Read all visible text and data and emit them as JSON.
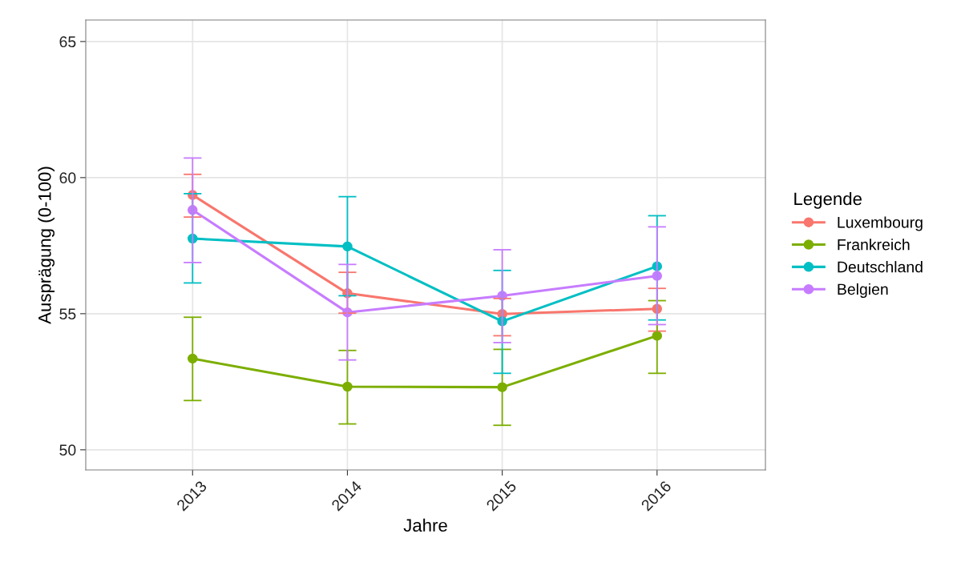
{
  "chart_data": {
    "type": "line",
    "xlabel": "Jahre",
    "ylabel": "Ausprägung (0-100)",
    "legend_title": "Legende",
    "x": [
      2013,
      2014,
      2015,
      2016
    ],
    "xlim": [
      2012.31,
      2016.7
    ],
    "xticks": [
      2013,
      2014,
      2015,
      2016
    ],
    "ylim": [
      49.26,
      65.79
    ],
    "yticks": [
      50,
      55,
      60,
      65
    ],
    "grid": true,
    "legend": "right",
    "marker": "circle",
    "line_style": "solid",
    "series": [
      {
        "name": "Luxembourg",
        "color": "#f8766d",
        "values": [
          59.36,
          55.75,
          54.99,
          55.18
        ],
        "errors": [
          [
            58.55,
            60.12
          ],
          [
            55.02,
            56.52
          ],
          [
            54.19,
            55.56
          ],
          [
            54.36,
            55.93
          ]
        ]
      },
      {
        "name": "Frankreich",
        "color": "#7cae00",
        "values": [
          53.35,
          52.32,
          52.3,
          54.19
        ],
        "errors": [
          [
            51.81,
            54.87
          ],
          [
            50.95,
            53.65
          ],
          [
            50.9,
            53.69
          ],
          [
            52.81,
            55.48
          ]
        ]
      },
      {
        "name": "Deutschland",
        "color": "#00bfc4",
        "values": [
          57.76,
          57.47,
          54.72,
          56.74
        ],
        "errors": [
          [
            56.13,
            59.41
          ],
          [
            55.66,
            59.3
          ],
          [
            52.81,
            56.59
          ],
          [
            54.77,
            58.6
          ]
        ]
      },
      {
        "name": "Belgien",
        "color": "#c77cff",
        "values": [
          58.81,
          55.05,
          55.66,
          56.39
        ],
        "errors": [
          [
            56.88,
            60.72
          ],
          [
            53.3,
            56.81
          ],
          [
            53.94,
            57.35
          ],
          [
            54.6,
            58.19
          ]
        ]
      }
    ]
  }
}
